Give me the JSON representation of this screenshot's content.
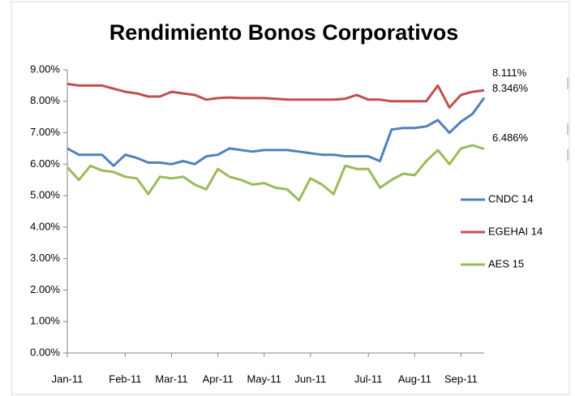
{
  "chart_data": {
    "type": "line",
    "title": "Rendimiento Bonos Corporativos",
    "x": [
      "Jan-11",
      null,
      null,
      null,
      null,
      "Feb-11",
      null,
      null,
      null,
      "Mar-11",
      null,
      null,
      null,
      "Apr-11",
      null,
      null,
      null,
      "May-11",
      null,
      null,
      null,
      "Jun-11",
      null,
      null,
      null,
      null,
      "Jul-11",
      null,
      null,
      null,
      "Aug-11",
      null,
      null,
      null,
      "Sep-11",
      null,
      null
    ],
    "series": [
      {
        "name": "CNDC 14",
        "color": "#4f81bd",
        "values": [
          6.5,
          6.3,
          6.3,
          6.3,
          5.95,
          6.3,
          6.2,
          6.05,
          6.05,
          6.0,
          6.1,
          6.0,
          6.25,
          6.3,
          6.5,
          6.45,
          6.4,
          6.45,
          6.45,
          6.45,
          6.4,
          6.35,
          6.3,
          6.3,
          6.25,
          6.25,
          6.25,
          6.1,
          7.1,
          7.15,
          7.15,
          7.2,
          7.4,
          7.0,
          7.35,
          7.6,
          8.111
        ],
        "value_labels": [
          null,
          null,
          null,
          null,
          null,
          null,
          null,
          null,
          null,
          null,
          null,
          null,
          null,
          null,
          null,
          null,
          null,
          null,
          null,
          null,
          null,
          null,
          null,
          null,
          null,
          null,
          null,
          null,
          null,
          null,
          null,
          null,
          null,
          null,
          null,
          null,
          "8.111%"
        ]
      },
      {
        "name": "EGEHAI 14",
        "color": "#c0504d",
        "values": [
          8.55,
          8.5,
          8.5,
          8.5,
          8.4,
          8.3,
          8.25,
          8.15,
          8.15,
          8.3,
          8.25,
          8.2,
          8.05,
          8.1,
          8.12,
          8.1,
          8.1,
          8.1,
          8.08,
          8.05,
          8.05,
          8.05,
          8.05,
          8.05,
          8.08,
          8.2,
          8.05,
          8.05,
          8.0,
          8.0,
          8.0,
          8.0,
          8.5,
          7.8,
          8.2,
          8.3,
          8.346
        ],
        "value_labels": [
          null,
          null,
          null,
          null,
          null,
          null,
          null,
          null,
          null,
          null,
          null,
          null,
          null,
          null,
          null,
          null,
          null,
          null,
          null,
          null,
          null,
          null,
          null,
          null,
          null,
          null,
          null,
          null,
          null,
          null,
          null,
          null,
          null,
          null,
          null,
          null,
          "8.346%"
        ]
      },
      {
        "name": "AES 15",
        "color": "#9bbb59",
        "values": [
          5.9,
          5.5,
          5.95,
          5.8,
          5.75,
          5.6,
          5.55,
          5.05,
          5.6,
          5.55,
          5.6,
          5.35,
          5.2,
          5.85,
          5.6,
          5.5,
          5.35,
          5.4,
          5.25,
          5.2,
          4.85,
          5.55,
          5.35,
          5.05,
          5.95,
          5.85,
          5.85,
          5.25,
          5.5,
          5.7,
          5.65,
          6.1,
          6.45,
          6.0,
          6.5,
          6.6,
          6.486
        ],
        "value_labels": [
          null,
          null,
          null,
          null,
          null,
          null,
          null,
          null,
          null,
          null,
          null,
          null,
          null,
          null,
          null,
          null,
          null,
          null,
          null,
          null,
          null,
          null,
          null,
          null,
          null,
          null,
          null,
          null,
          null,
          null,
          null,
          null,
          null,
          null,
          null,
          null,
          "6.486%"
        ]
      }
    ],
    "ylim": [
      0,
      9
    ],
    "yticks": [
      {
        "value": 0,
        "label": "0.00%"
      },
      {
        "value": 1,
        "label": "1.00%"
      },
      {
        "value": 2,
        "label": "2.00%"
      },
      {
        "value": 3,
        "label": "3.00%"
      },
      {
        "value": 4,
        "label": "4.00%"
      },
      {
        "value": 5,
        "label": "5.00%"
      },
      {
        "value": 6,
        "label": "6.00%"
      },
      {
        "value": 7,
        "label": "7.00%"
      },
      {
        "value": 8,
        "label": "8.00%"
      },
      {
        "value": 9,
        "label": "9.00%"
      }
    ],
    "grid": false,
    "legend": "right"
  }
}
